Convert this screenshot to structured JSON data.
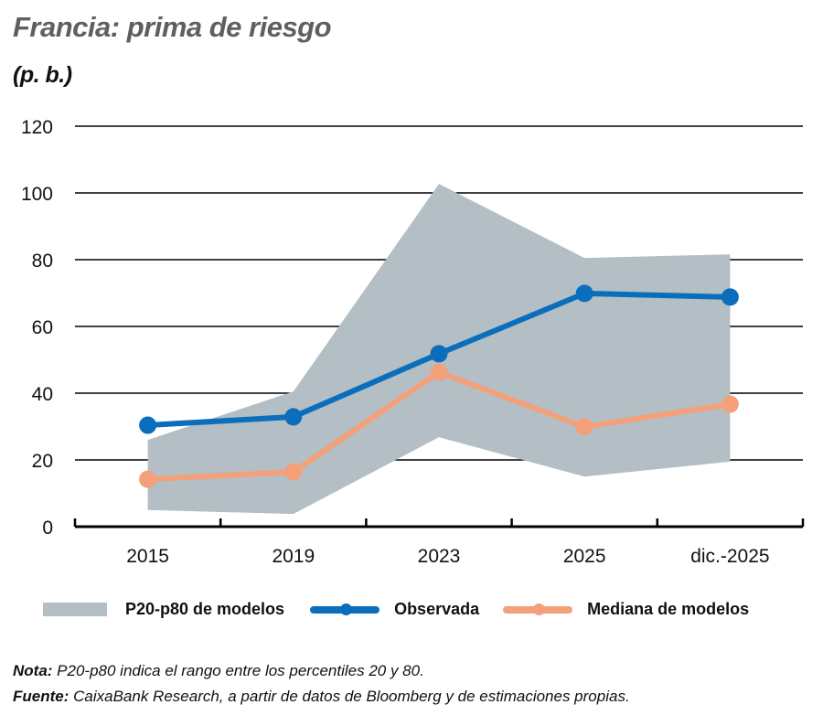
{
  "header": {
    "title": "Francia: prima de riesgo",
    "subtitle": "(p. b.)"
  },
  "legend": {
    "band_label": "P20-p80 de modelos",
    "observed_label": "Observada",
    "median_label": "Mediana de modelos"
  },
  "notes": {
    "nota_label": "Nota:",
    "nota_text": " P20-p80 indica el rango entre los percentiles 20 y 80.",
    "fuente_label": "Fuente:",
    "fuente_text": " CaixaBank Research, a partir de datos de Bloomberg y de estimaciones propias."
  },
  "colors": {
    "observed": "#0a6ebd",
    "median": "#f4a07a",
    "band": "#b3bfc4",
    "title": "#5f5f5f",
    "grid": "#000000"
  },
  "chart_data": {
    "type": "line",
    "title": "Francia: prima de riesgo",
    "subtitle": "(p. b.)",
    "xlabel": "",
    "ylabel": "p. b.",
    "categories": [
      "2015",
      "2019",
      "2023",
      "2025",
      "dic.-2025"
    ],
    "ylim": [
      0,
      120
    ],
    "yticks": [
      0,
      20,
      40,
      60,
      80,
      100,
      120
    ],
    "grid": true,
    "legend_position": "bottom",
    "series": [
      {
        "name": "Observada",
        "type": "line",
        "values": [
          30.4,
          32.9,
          51.8,
          69.9,
          68.8
        ]
      },
      {
        "name": "Mediana de modelos",
        "type": "line",
        "values": [
          14.2,
          16.4,
          46.3,
          29.9,
          36.7
        ]
      },
      {
        "name": "P20-p80 de modelos",
        "type": "area-range",
        "lower": [
          5.0,
          3.8,
          26.8,
          15.0,
          19.5
        ],
        "upper": [
          26.0,
          40.5,
          102.7,
          80.5,
          81.6
        ]
      }
    ],
    "annotations": [
      "Nota: P20-p80 indica el rango entre los percentiles 20 y 80.",
      "Fuente: CaixaBank Research, a partir de datos de Bloomberg y de estimaciones propias."
    ]
  }
}
